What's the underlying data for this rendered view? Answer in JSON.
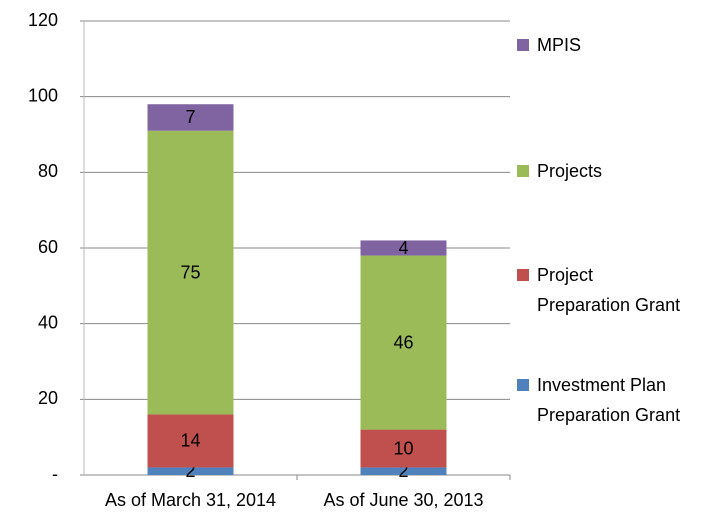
{
  "chart_data": {
    "type": "stacked_bar",
    "categories": [
      "As of March 31, 2014",
      "As of June 30, 2013"
    ],
    "series": [
      {
        "name": "Investment Plan Preparation Grant",
        "color": "#4f81bd",
        "values": [
          2,
          2
        ]
      },
      {
        "name": "Project Preparation Grant",
        "color": "#c0504d",
        "values": [
          14,
          10
        ]
      },
      {
        "name": "Projects",
        "color": "#9bbb59",
        "values": [
          75,
          46
        ]
      },
      {
        "name": "MPIS",
        "color": "#8064a2",
        "values": [
          7,
          4
        ]
      }
    ],
    "ylim": [
      0,
      120
    ],
    "yticks": [
      {
        "value": 0,
        "label": "-"
      },
      20,
      40,
      60,
      80,
      100,
      120
    ],
    "grid": true,
    "legend": "right"
  }
}
